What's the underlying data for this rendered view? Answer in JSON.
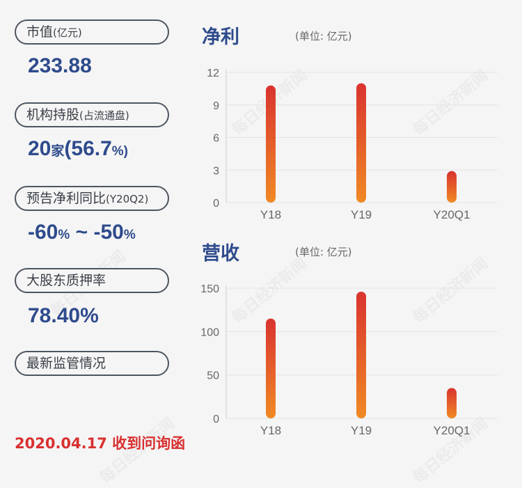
{
  "left": {
    "items": [
      {
        "label": "市值",
        "sub": "(亿元)",
        "value": "233.88"
      },
      {
        "label": "机构持股",
        "sub": "(占流通盘)",
        "value_a": "20",
        "unit_a": "家",
        "value_b": "(56.7",
        "unit_b": "%)"
      },
      {
        "label": "预告净利同比",
        "sub": "(Y20Q2)",
        "value_a": "-60",
        "unit_a": "%",
        "tilde": " ~ ",
        "value_b": "-50",
        "unit_b": "%"
      },
      {
        "label": "大股东质押率",
        "value": "78.40%"
      },
      {
        "label": "最新监管情况"
      }
    ],
    "footer": "2020.04.17 收到问询函"
  },
  "watermark": "每日经济新闻",
  "colors": {
    "bar_top": "#d9332f",
    "bar_bottom": "#f08a24",
    "title": "#2e4b8c",
    "alert": "#d93030"
  },
  "chart_data": [
    {
      "type": "bar",
      "title": "净利",
      "unit": "(单位: 亿元)",
      "categories": [
        "Y18",
        "Y19",
        "Y20Q1"
      ],
      "values": [
        10.8,
        11.0,
        2.9
      ],
      "ylim": [
        0,
        12
      ],
      "yticks": [
        "0",
        "3",
        "6",
        "9",
        "12"
      ]
    },
    {
      "type": "bar",
      "title": "营收",
      "unit": "(单位: 亿元)",
      "categories": [
        "Y18",
        "Y19",
        "Y20Q1"
      ],
      "values": [
        115,
        146,
        35
      ],
      "ylim": [
        0,
        150
      ],
      "yticks": [
        "0",
        "50",
        "100",
        "150"
      ]
    }
  ]
}
